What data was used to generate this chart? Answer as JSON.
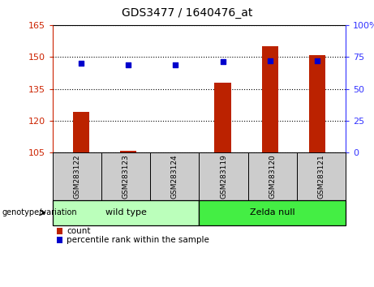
{
  "title": "GDS3477 / 1640476_at",
  "categories": [
    "GSM283122",
    "GSM283123",
    "GSM283124",
    "GSM283119",
    "GSM283120",
    "GSM283121"
  ],
  "bar_values": [
    124,
    106,
    105,
    138,
    155,
    151
  ],
  "percentile_values": [
    70,
    69,
    69,
    71,
    72,
    72
  ],
  "bar_bottom": 105,
  "ylim_left": [
    105,
    165
  ],
  "ylim_right": [
    0,
    100
  ],
  "yticks_left": [
    105,
    120,
    135,
    150,
    165
  ],
  "yticks_right": [
    0,
    25,
    50,
    75,
    100
  ],
  "bar_color": "#bb2200",
  "dot_color": "#0000cc",
  "grid_color": "#000000",
  "bg_color": "#ffffff",
  "plot_bg": "#ffffff",
  "wild_type_label": "wild type",
  "zelda_null_label": "Zelda null",
  "genotype_label": "genotype/variation",
  "legend_count": "count",
  "legend_percentile": "percentile rank within the sample",
  "wild_type_color": "#bbffbb",
  "zelda_null_color": "#44ee44",
  "tick_label_bg": "#cccccc",
  "left_axis_color": "#cc2200",
  "right_axis_color": "#3333ff",
  "right_tick_labels": [
    "0",
    "25",
    "50",
    "75",
    "100%"
  ]
}
